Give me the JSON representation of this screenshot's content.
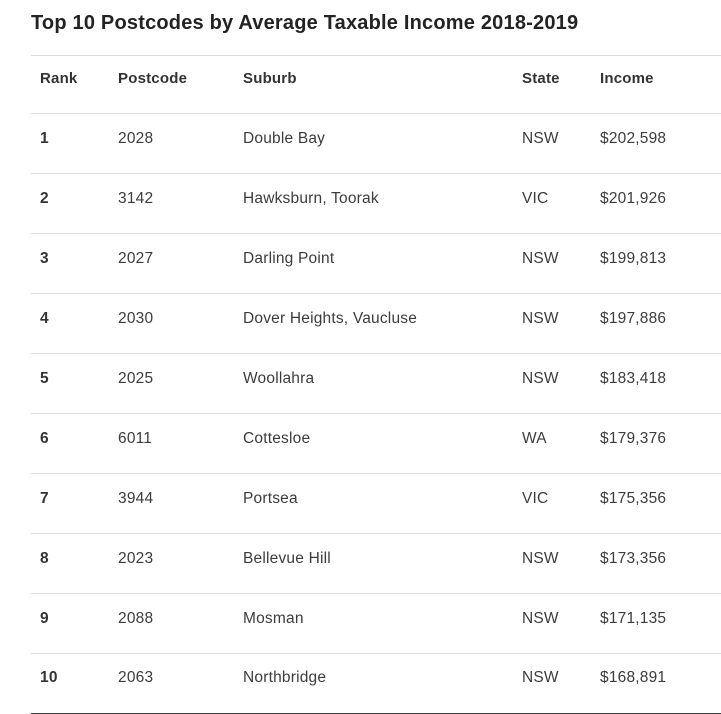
{
  "title": "Top 10 Postcodes by Average Taxable Income 2018-2019",
  "table": {
    "columns": [
      "Rank",
      "Postcode",
      "Suburb",
      "State",
      "Income"
    ],
    "rows": [
      [
        "1",
        "2028",
        "Double Bay",
        "NSW",
        "$202,598"
      ],
      [
        "2",
        "3142",
        "Hawksburn, Toorak",
        "VIC",
        "$201,926"
      ],
      [
        "3",
        "2027",
        "Darling Point",
        "NSW",
        "$199,813"
      ],
      [
        "4",
        "2030",
        "Dover Heights, Vaucluse",
        "NSW",
        "$197,886"
      ],
      [
        "5",
        "2025",
        "Woollahra",
        "NSW",
        "$183,418"
      ],
      [
        "6",
        "6011",
        "Cottesloe",
        "WA",
        "$179,376"
      ],
      [
        "7",
        "3944",
        "Portsea",
        "VIC",
        "$175,356"
      ],
      [
        "8",
        "2023",
        "Bellevue Hill",
        "NSW",
        "$173,356"
      ],
      [
        "9",
        "2088",
        "Mosman",
        "NSW",
        "$171,135"
      ],
      [
        "10",
        "2063",
        "Northbridge",
        "NSW",
        "$168,891"
      ]
    ]
  },
  "colors": {
    "title_text": "#232323",
    "body_text": "#3c3c3c",
    "header_text": "#333333",
    "row_separator": "#dcdcdc",
    "table_bottom_border": "#3a3a3a",
    "background": "#ffffff"
  },
  "chart_data": {
    "type": "table",
    "title": "Top 10 Postcodes by Average Taxable Income 2018-2019",
    "categories": [
      "Double Bay",
      "Hawksburn, Toorak",
      "Darling Point",
      "Dover Heights, Vaucluse",
      "Woollahra",
      "Cottesloe",
      "Portsea",
      "Bellevue Hill",
      "Mosman",
      "Northbridge"
    ],
    "values": [
      202598,
      201926,
      199813,
      197886,
      183418,
      179376,
      175356,
      173356,
      171135,
      168891
    ],
    "ylabel": "Income"
  }
}
